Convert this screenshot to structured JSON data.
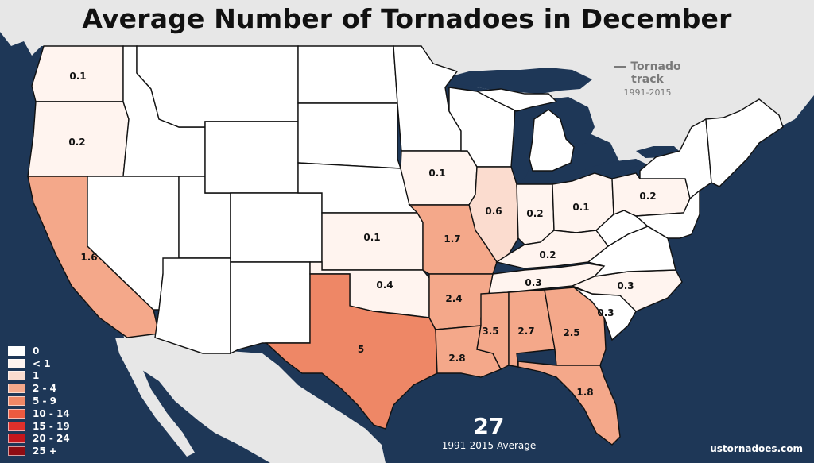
{
  "title": "Average Number of Tornadoes in December",
  "track_legend": {
    "label": "Tornado track",
    "years": "1991-2015"
  },
  "colors": {
    "ocean": "#1e3757",
    "land": "#e7e7e7",
    "state_border": "#111111"
  },
  "legend": [
    {
      "label": "0",
      "color": "#ffffff"
    },
    {
      "label": "< 1",
      "color": "#fff4ef"
    },
    {
      "label": "1",
      "color": "#fbdccf"
    },
    {
      "label": "2 - 4",
      "color": "#f4a88a"
    },
    {
      "label": "5 - 9",
      "color": "#ee8766"
    },
    {
      "label": "10 - 14",
      "color": "#ec5a40"
    },
    {
      "label": "15 - 19",
      "color": "#e0302b"
    },
    {
      "label": "20 - 24",
      "color": "#c4161c"
    },
    {
      "label": "25 +",
      "color": "#8f0d13"
    }
  ],
  "states": [
    {
      "state": "Washington",
      "value": "0.1"
    },
    {
      "state": "Oregon",
      "value": "0.2"
    },
    {
      "state": "California",
      "value": "1.6"
    },
    {
      "state": "Iowa",
      "value": "0.1"
    },
    {
      "state": "Illinois",
      "value": "0.6"
    },
    {
      "state": "Indiana",
      "value": "0.2"
    },
    {
      "state": "Ohio",
      "value": "0.1"
    },
    {
      "state": "Pennsylvania",
      "value": "0.2"
    },
    {
      "state": "Kansas",
      "value": "0.1"
    },
    {
      "state": "Missouri",
      "value": "1.7"
    },
    {
      "state": "Kentucky",
      "value": "0.2"
    },
    {
      "state": "Oklahoma",
      "value": "0.4"
    },
    {
      "state": "Arkansas",
      "value": "2.4"
    },
    {
      "state": "Tennessee",
      "value": "0.3"
    },
    {
      "state": "North Carolina",
      "value": "0.3"
    },
    {
      "state": "South Carolina",
      "value": "0.3"
    },
    {
      "state": "Texas",
      "value": "5"
    },
    {
      "state": "Louisiana",
      "value": "2.8"
    },
    {
      "state": "Mississippi",
      "value": "3.5"
    },
    {
      "state": "Alabama",
      "value": "2.7"
    },
    {
      "state": "Georgia",
      "value": "2.5"
    },
    {
      "state": "Florida",
      "value": "1.8"
    }
  ],
  "total": {
    "value": "27",
    "label": "1991-2015 Average"
  },
  "site": "ustornadoes.com"
}
